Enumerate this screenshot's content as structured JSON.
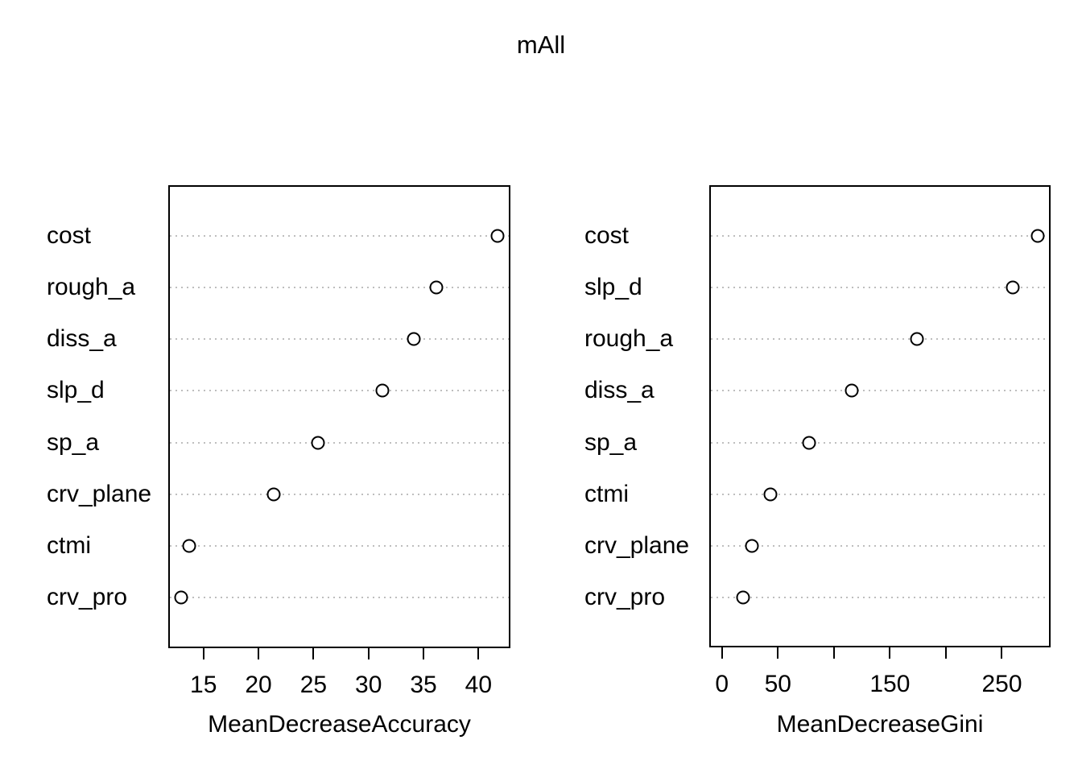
{
  "title": "mAll",
  "colors": {
    "foreground": "#000000",
    "background": "#ffffff",
    "grid": "#bebebe"
  },
  "chart_data": [
    {
      "type": "scatter",
      "subtype": "dotchart",
      "panel": "left",
      "title": "mAll",
      "xlabel": "MeanDecreaseAccuracy",
      "ylabel": "",
      "grid": "horizontal-dotted",
      "categories_top_to_bottom": [
        "cost",
        "rough_a",
        "diss_a",
        "slp_d",
        "sp_a",
        "crv_plane",
        "ctmi",
        "crv_pro"
      ],
      "values": [
        41.7,
        36.2,
        34.1,
        31.3,
        25.4,
        21.4,
        13.7,
        13.0
      ],
      "xlim": [
        11.8,
        42.9
      ],
      "xticks": [
        15,
        20,
        25,
        30,
        35,
        40
      ],
      "xtick_labels": [
        "15",
        "20",
        "25",
        "30",
        "35",
        "40"
      ],
      "marker": "open-circle"
    },
    {
      "type": "scatter",
      "subtype": "dotchart",
      "panel": "right",
      "title": "",
      "xlabel": "MeanDecreaseGini",
      "ylabel": "",
      "grid": "horizontal-dotted",
      "categories_top_to_bottom": [
        "cost",
        "slp_d",
        "rough_a",
        "diss_a",
        "sp_a",
        "ctmi",
        "crv_plane",
        "crv_pro"
      ],
      "values": [
        282,
        260,
        174,
        116,
        78,
        43,
        27,
        19
      ],
      "xlim": [
        -11.3,
        293.5
      ],
      "xticks": [
        0,
        50,
        100,
        150,
        200,
        250
      ],
      "xtick_labels": [
        "0",
        "50",
        "",
        "150",
        "",
        "250"
      ],
      "marker": "open-circle"
    }
  ]
}
